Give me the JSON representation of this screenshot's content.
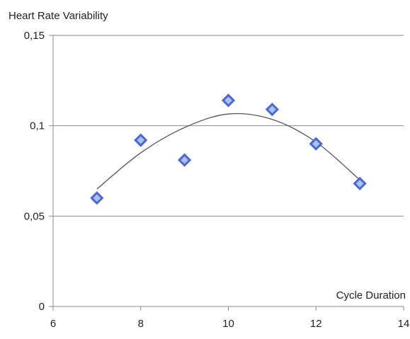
{
  "chart_data": {
    "type": "scatter",
    "ylabel": "Heart Rate Variability",
    "xlabel": "Cycle Duration",
    "xlim": [
      6,
      14
    ],
    "ylim": [
      0,
      0.15
    ],
    "x_ticks": [
      "6",
      "8",
      "10",
      "12",
      "14"
    ],
    "y_ticks": [
      "0",
      "0,05",
      "0,1",
      "0,15"
    ],
    "grid": "horizontal",
    "series": [
      {
        "points": [
          {
            "x": 7,
            "y": 0.06
          },
          {
            "x": 8,
            "y": 0.092
          },
          {
            "x": 9,
            "y": 0.081
          },
          {
            "x": 10,
            "y": 0.114
          },
          {
            "x": 11,
            "y": 0.109
          },
          {
            "x": 12,
            "y": 0.09
          },
          {
            "x": 13,
            "y": 0.068
          }
        ],
        "marker": "diamond",
        "marker_fill": "#a9c0f2",
        "marker_edge": "#4a68d0"
      }
    ],
    "trendline": {
      "type": "polynomial",
      "order": 2,
      "points": [
        {
          "x": 7,
          "y": 0.065
        },
        {
          "x": 8,
          "y": 0.085
        },
        {
          "x": 9,
          "y": 0.099
        },
        {
          "x": 10,
          "y": 0.1065
        },
        {
          "x": 11,
          "y": 0.1035
        },
        {
          "x": 12,
          "y": 0.091
        },
        {
          "x": 13,
          "y": 0.07
        }
      ],
      "color": "#555555"
    }
  }
}
